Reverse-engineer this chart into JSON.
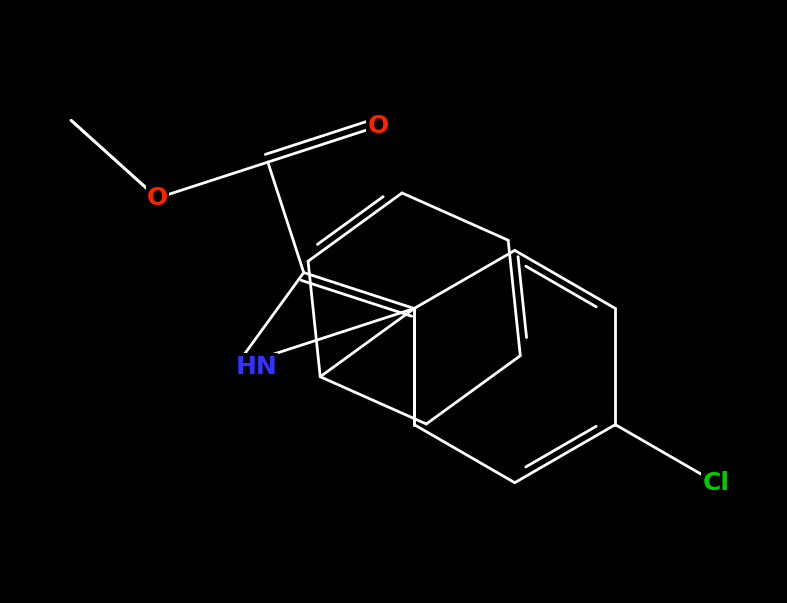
{
  "bg": "#000000",
  "bond_color": "#ffffff",
  "bond_lw": 2.0,
  "dbo": 0.07,
  "atom_colors": {
    "O": "#ff2200",
    "N": "#3333ff",
    "Cl": "#00cc00"
  },
  "fs": 18,
  "BL": 1.0,
  "figsize": [
    7.87,
    6.03
  ],
  "dpi": 100
}
